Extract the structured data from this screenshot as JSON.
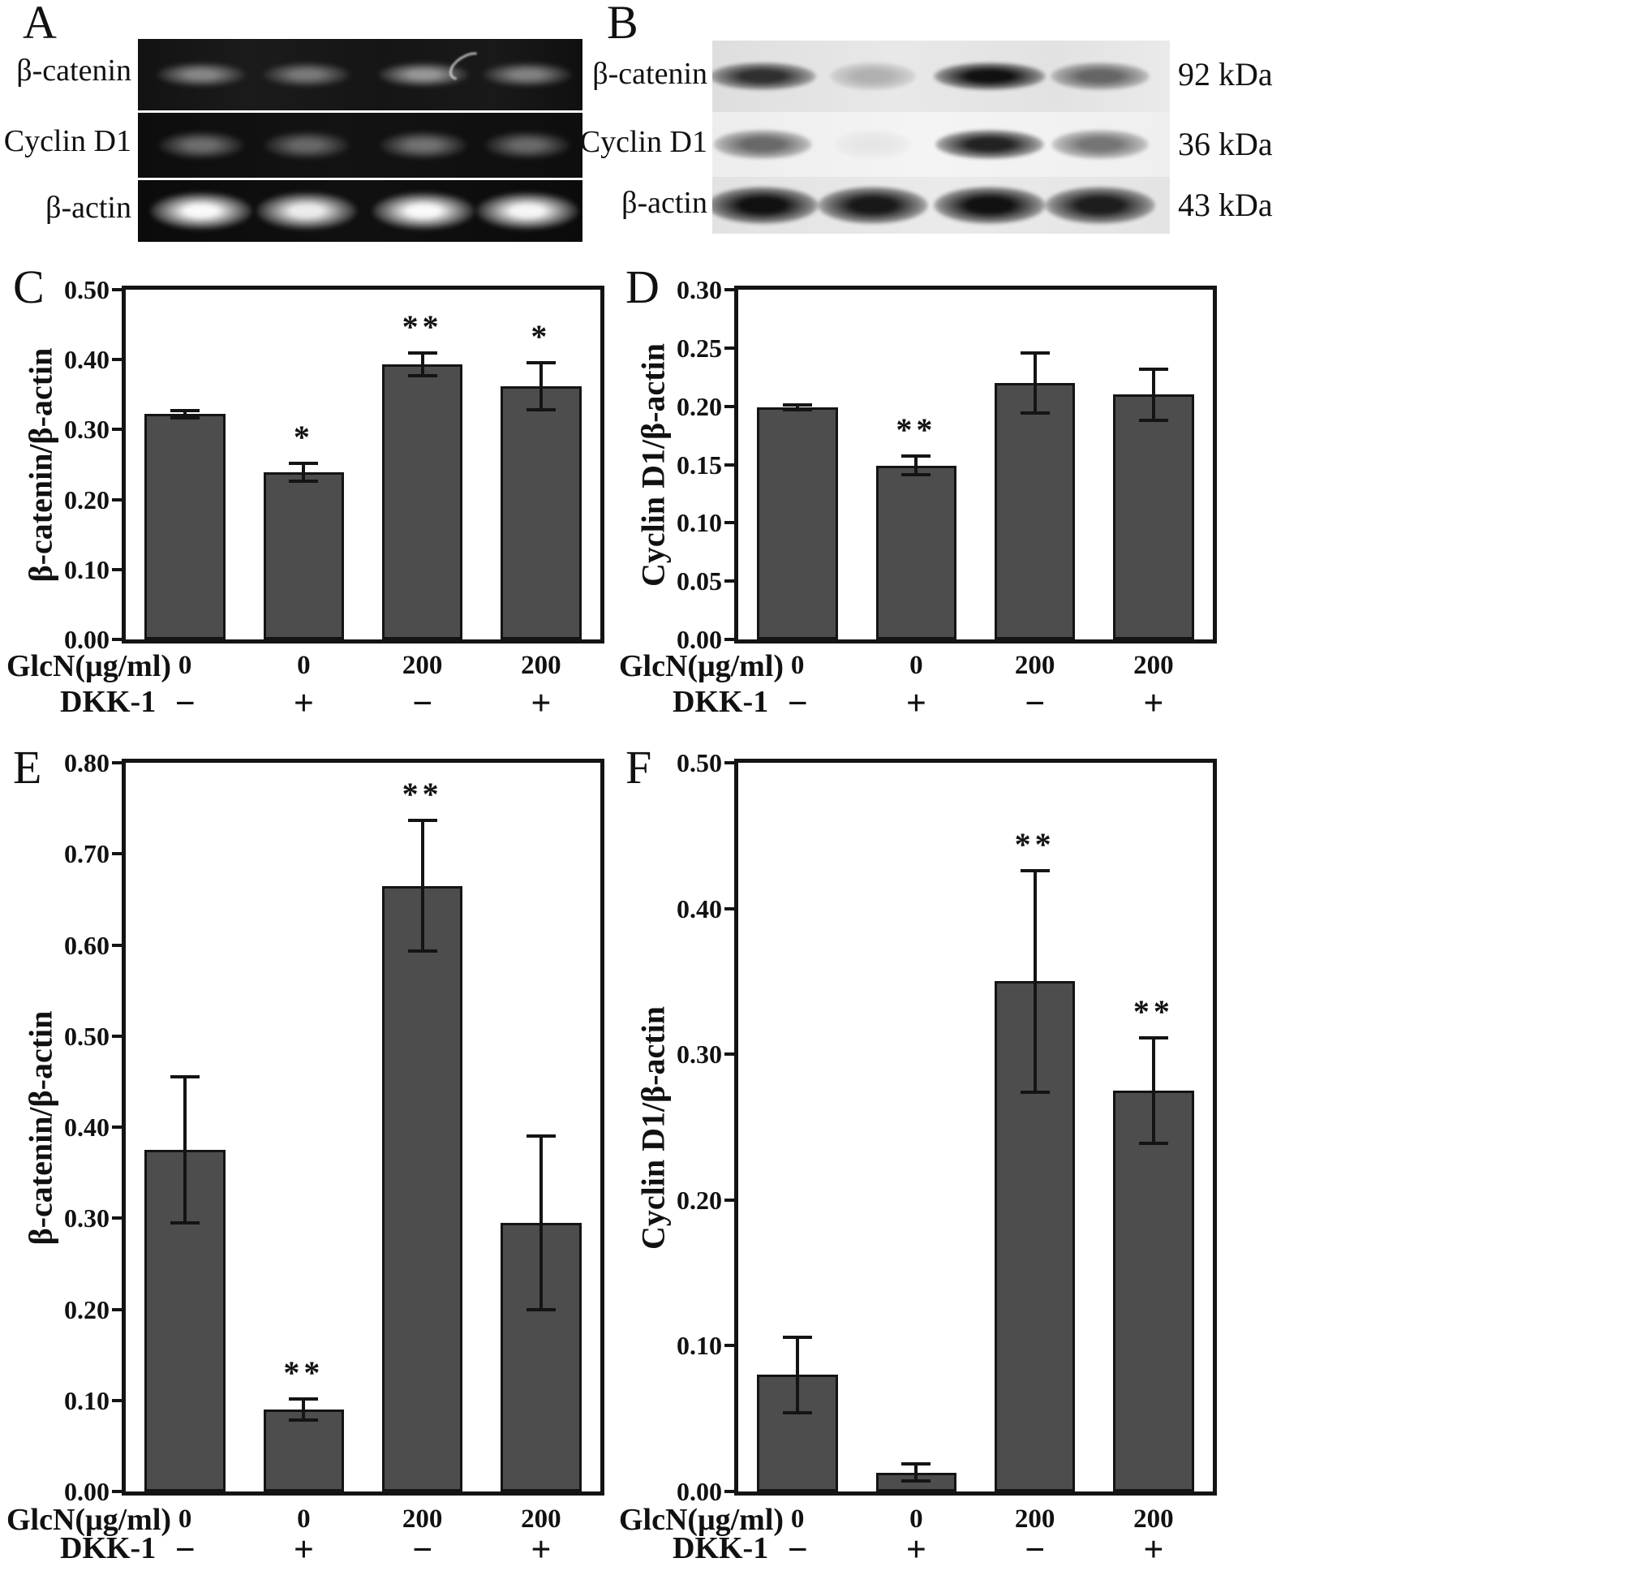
{
  "figure": {
    "panels": {
      "a": {
        "label": "A",
        "type": "gel",
        "rows": [
          {
            "label": "β-catenin",
            "bands": [
              0.32,
              0.24,
              0.42,
              0.3
            ]
          },
          {
            "label": "Cyclin D1",
            "bands": [
              0.2,
              0.16,
              0.22,
              0.18
            ]
          },
          {
            "label": "β-actin",
            "bands": [
              1.0,
              0.92,
              1.0,
              0.98
            ]
          }
        ]
      },
      "b": {
        "label": "B",
        "type": "blot",
        "rows": [
          {
            "label": "β-catenin",
            "kda": "92 kDa",
            "bands": [
              0.85,
              0.25,
              1.0,
              0.6
            ]
          },
          {
            "label": "Cyclin D1",
            "kda": "36 kDa",
            "bands": [
              0.6,
              0.05,
              0.92,
              0.55
            ]
          },
          {
            "label": "β-actin",
            "kda": "43 kDa",
            "bands": [
              1.0,
              0.96,
              1.0,
              0.94
            ]
          }
        ]
      }
    }
  },
  "chart_data": [
    {
      "id": "C",
      "type": "bar",
      "panel_label": "C",
      "ylabel": "β-catenin/β-actin",
      "ylim": [
        0,
        0.5
      ],
      "yticks": [
        0,
        0.1,
        0.2,
        0.3,
        0.4,
        0.5
      ],
      "grid": false,
      "legend": "none",
      "bar_color": "#4d4d4d",
      "categories": [
        "GlcN 0 / DKK-1 −",
        "GlcN 0 / DKK-1 +",
        "GlcN 200 / DKK-1 −",
        "GlcN 200 / DKK-1 +"
      ],
      "values": [
        0.322,
        0.239,
        0.393,
        0.362
      ],
      "errors": [
        0.005,
        0.013,
        0.016,
        0.034
      ],
      "sig": [
        "",
        "*",
        "**",
        "*"
      ],
      "x_rows": [
        {
          "header": "GlcN(μg/ml)",
          "values": [
            "0",
            "0",
            "200",
            "200"
          ]
        },
        {
          "header": "DKK-1",
          "values": [
            "−",
            "+",
            "−",
            "+"
          ]
        }
      ]
    },
    {
      "id": "D",
      "type": "bar",
      "panel_label": "D",
      "ylabel": "Cyclin D1/β-actin",
      "ylim": [
        0,
        0.3
      ],
      "yticks": [
        0,
        0.05,
        0.1,
        0.15,
        0.2,
        0.25,
        0.3
      ],
      "grid": false,
      "legend": "none",
      "bar_color": "#4d4d4d",
      "categories": [
        "GlcN 0 / DKK-1 −",
        "GlcN 0 / DKK-1 +",
        "GlcN 200 / DKK-1 −",
        "GlcN 200 / DKK-1 +"
      ],
      "values": [
        0.199,
        0.149,
        0.22,
        0.21
      ],
      "errors": [
        0.002,
        0.008,
        0.026,
        0.022
      ],
      "sig": [
        "",
        "**",
        "",
        ""
      ],
      "x_rows": [
        {
          "header": "GlcN(μg/ml)",
          "values": [
            "0",
            "0",
            "200",
            "200"
          ]
        },
        {
          "header": "DKK-1",
          "values": [
            "−",
            "+",
            "−",
            "+"
          ]
        }
      ]
    },
    {
      "id": "E",
      "type": "bar",
      "panel_label": "E",
      "ylabel": "β-catenin/β-actin",
      "ylim": [
        0,
        0.8
      ],
      "yticks": [
        0,
        0.1,
        0.2,
        0.3,
        0.4,
        0.5,
        0.6,
        0.7,
        0.8
      ],
      "grid": false,
      "legend": "none",
      "bar_color": "#4d4d4d",
      "categories": [
        "GlcN 0 / DKK-1 −",
        "GlcN 0 / DKK-1 +",
        "GlcN 200 / DKK-1 −",
        "GlcN 200 / DKK-1 +"
      ],
      "values": [
        0.375,
        0.09,
        0.665,
        0.295
      ],
      "errors": [
        0.08,
        0.012,
        0.072,
        0.095
      ],
      "sig": [
        "",
        "**",
        "**",
        ""
      ],
      "x_rows": [
        {
          "header": "GlcN(μg/ml)",
          "values": [
            "0",
            "0",
            "200",
            "200"
          ]
        },
        {
          "header": "DKK-1",
          "values": [
            "−",
            "+",
            "−",
            "+"
          ]
        }
      ]
    },
    {
      "id": "F",
      "type": "bar",
      "panel_label": "F",
      "ylabel": "Cyclin D1/β-actin",
      "ylim": [
        0,
        0.5
      ],
      "yticks": [
        0,
        0.1,
        0.2,
        0.3,
        0.4,
        0.5
      ],
      "grid": false,
      "legend": "none",
      "bar_color": "#4d4d4d",
      "categories": [
        "GlcN 0 / DKK-1 −",
        "GlcN 0 / DKK-1 +",
        "GlcN 200 / DKK-1 −",
        "GlcN 200 / DKK-1 +"
      ],
      "values": [
        0.08,
        0.013,
        0.35,
        0.275
      ],
      "errors": [
        0.026,
        0.006,
        0.076,
        0.036
      ],
      "sig": [
        "",
        "",
        "**",
        "**"
      ],
      "x_rows": [
        {
          "header": "GlcN(μg/ml)",
          "values": [
            "0",
            "0",
            "200",
            "200"
          ]
        },
        {
          "header": "DKK-1",
          "values": [
            "−",
            "+",
            "−",
            "+"
          ]
        }
      ]
    }
  ]
}
